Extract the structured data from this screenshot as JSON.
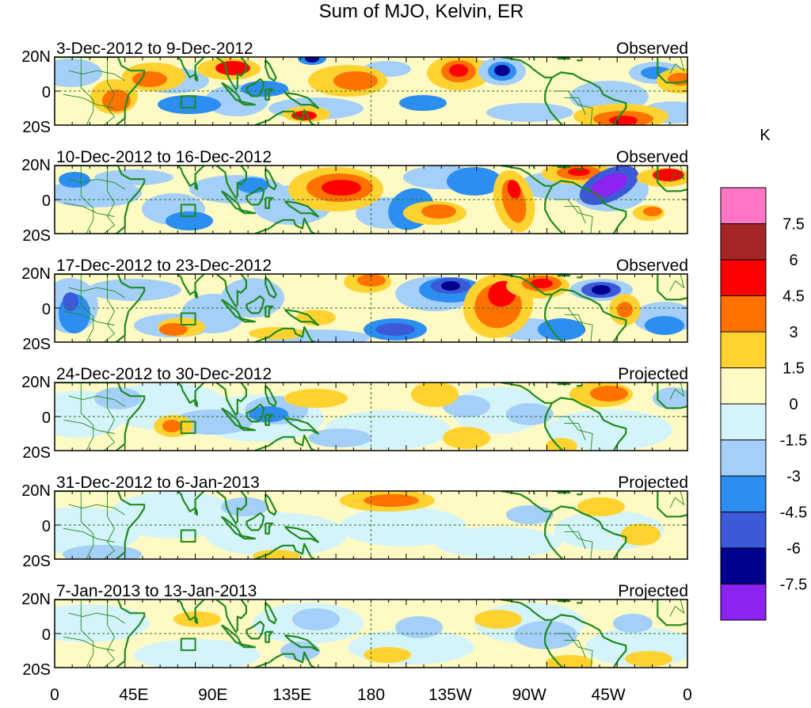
{
  "title": "Sum of MJO, Kelvin, ER",
  "panels": [
    {
      "period": "3-Dec-2012 to 9-Dec-2012",
      "status": "Observed"
    },
    {
      "period": "10-Dec-2012 to 16-Dec-2012",
      "status": "Observed"
    },
    {
      "period": "17-Dec-2012 to 23-Dec-2012",
      "status": "Observed"
    },
    {
      "period": "24-Dec-2012 to 30-Dec-2012",
      "status": "Projected"
    },
    {
      "period": "31-Dec-2012 to 6-Jan-2013",
      "status": "Projected"
    },
    {
      "period": "7-Jan-2013 to 13-Jan-2013",
      "status": "Projected"
    }
  ],
  "lat_labels": [
    "20N",
    "0",
    "20S"
  ],
  "lon_labels": [
    "0",
    "45E",
    "90E",
    "135E",
    "180",
    "135W",
    "90W",
    "45W",
    "0"
  ],
  "colorbar": {
    "unit": "K",
    "tick_labels": [
      "7.5",
      "6",
      "4.5",
      "3",
      "1.5",
      "0",
      "-1.5",
      "-3",
      "-4.5",
      "-6",
      "-7.5"
    ],
    "colors": [
      "#ff77c4",
      "#a52626",
      "#ff0000",
      "#ff7200",
      "#ffd230",
      "#fffac4",
      "#d5f4fa",
      "#a4cff8",
      "#2c8ef0",
      "#3c59d7",
      "#00008e",
      "#8e22f0"
    ]
  },
  "colors": {
    "coast": "#1e8a1e",
    "dashed": "#2a6e2a"
  }
}
